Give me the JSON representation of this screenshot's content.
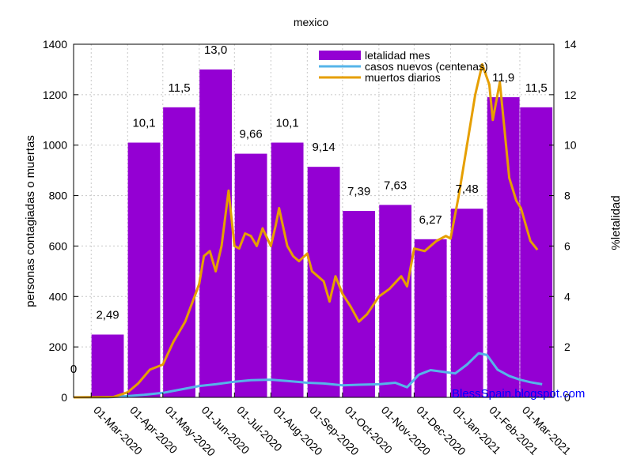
{
  "chart_data": {
    "type": "bar",
    "title": "mexico",
    "ylabel": "personas contagiadas o muertas",
    "y2label": "%letalidad",
    "ylim": [
      0,
      1400
    ],
    "y2lim": [
      0,
      14
    ],
    "yticks": [
      "0",
      "200",
      "400",
      "600",
      "800",
      "1000",
      "1200",
      "1400"
    ],
    "y2ticks": [
      "0",
      "2",
      "4",
      "6",
      "8",
      "10",
      "12",
      "14"
    ],
    "xrange": [
      "2020-02-15",
      "2021-03-30"
    ],
    "xticks": [
      {
        "date": "2020-03-01",
        "label": "01-Mar-2020"
      },
      {
        "date": "2020-04-01",
        "label": "01-Apr-2020"
      },
      {
        "date": "2020-05-01",
        "label": "01-May-2020"
      },
      {
        "date": "2020-06-01",
        "label": "01-Jun-2020"
      },
      {
        "date": "2020-07-01",
        "label": "01-Jul-2020"
      },
      {
        "date": "2020-08-01",
        "label": "01-Aug-2020"
      },
      {
        "date": "2020-09-01",
        "label": "01-Sep-2020"
      },
      {
        "date": "2020-10-01",
        "label": "01-Oct-2020"
      },
      {
        "date": "2020-11-01",
        "label": "01-Nov-2020"
      },
      {
        "date": "2020-12-01",
        "label": "01-Dec-2020"
      },
      {
        "date": "2021-01-01",
        "label": "01-Jan-2021"
      },
      {
        "date": "2021-02-01",
        "label": "01-Feb-2021"
      },
      {
        "date": "2021-03-01",
        "label": "01-Mar-2021"
      }
    ],
    "grid": true,
    "legend_position": "top-right",
    "series": [
      {
        "name": "letalidad mes",
        "axis": "y2",
        "color": "#9400d3",
        "kind": "bar",
        "bars": [
          {
            "date": "2020-02-15",
            "value": 0,
            "label": "0"
          },
          {
            "date": "2020-03-15",
            "value": 2.49,
            "label": "2,49"
          },
          {
            "date": "2020-04-15",
            "value": 10.1,
            "label": "10,1"
          },
          {
            "date": "2020-05-15",
            "value": 11.5,
            "label": "11,5"
          },
          {
            "date": "2020-06-15",
            "value": 13.0,
            "label": "13,0"
          },
          {
            "date": "2020-07-15",
            "value": 9.66,
            "label": "9,66"
          },
          {
            "date": "2020-08-15",
            "value": 10.1,
            "label": "10,1"
          },
          {
            "date": "2020-09-15",
            "value": 9.14,
            "label": "9,14"
          },
          {
            "date": "2020-10-15",
            "value": 7.39,
            "label": "7,39"
          },
          {
            "date": "2020-11-15",
            "value": 7.63,
            "label": "7,63"
          },
          {
            "date": "2020-12-15",
            "value": 6.27,
            "label": "6,27"
          },
          {
            "date": "2021-01-15",
            "value": 7.48,
            "label": "7,48"
          },
          {
            "date": "2021-02-15",
            "value": 11.9,
            "label": "11,9"
          },
          {
            "date": "2021-03-15",
            "value": 11.5,
            "label": "11,5"
          }
        ]
      },
      {
        "name": "casos nuevos (centenas)",
        "axis": "y",
        "color": "#56b4e9",
        "kind": "line",
        "points": [
          [
            "2020-02-15",
            0
          ],
          [
            "2020-03-15",
            0
          ],
          [
            "2020-04-01",
            5
          ],
          [
            "2020-04-15",
            10
          ],
          [
            "2020-05-01",
            18
          ],
          [
            "2020-05-15",
            30
          ],
          [
            "2020-06-01",
            45
          ],
          [
            "2020-06-15",
            52
          ],
          [
            "2020-07-01",
            62
          ],
          [
            "2020-07-15",
            68
          ],
          [
            "2020-08-01",
            70
          ],
          [
            "2020-08-15",
            65
          ],
          [
            "2020-09-01",
            58
          ],
          [
            "2020-09-15",
            55
          ],
          [
            "2020-10-01",
            48
          ],
          [
            "2020-10-15",
            50
          ],
          [
            "2020-11-01",
            52
          ],
          [
            "2020-11-15",
            58
          ],
          [
            "2020-11-25",
            40
          ],
          [
            "2020-12-05",
            90
          ],
          [
            "2020-12-15",
            108
          ],
          [
            "2020-12-28",
            100
          ],
          [
            "2021-01-05",
            95
          ],
          [
            "2021-01-15",
            130
          ],
          [
            "2021-01-25",
            175
          ],
          [
            "2021-02-01",
            168
          ],
          [
            "2021-02-10",
            110
          ],
          [
            "2021-02-20",
            85
          ],
          [
            "2021-03-01",
            70
          ],
          [
            "2021-03-10",
            60
          ],
          [
            "2021-03-20",
            52
          ]
        ]
      },
      {
        "name": "muertos diarios",
        "axis": "y",
        "color": "#e69f00",
        "kind": "line",
        "points": [
          [
            "2020-02-15",
            0
          ],
          [
            "2020-03-20",
            2
          ],
          [
            "2020-04-01",
            20
          ],
          [
            "2020-04-10",
            55
          ],
          [
            "2020-04-20",
            110
          ],
          [
            "2020-05-01",
            130
          ],
          [
            "2020-05-10",
            220
          ],
          [
            "2020-05-20",
            300
          ],
          [
            "2020-05-28",
            400
          ],
          [
            "2020-06-01",
            450
          ],
          [
            "2020-06-05",
            560
          ],
          [
            "2020-06-10",
            580
          ],
          [
            "2020-06-15",
            500
          ],
          [
            "2020-06-20",
            600
          ],
          [
            "2020-06-26",
            820
          ],
          [
            "2020-07-01",
            600
          ],
          [
            "2020-07-05",
            590
          ],
          [
            "2020-07-10",
            650
          ],
          [
            "2020-07-15",
            640
          ],
          [
            "2020-07-20",
            600
          ],
          [
            "2020-07-25",
            670
          ],
          [
            "2020-08-01",
            600
          ],
          [
            "2020-08-05",
            680
          ],
          [
            "2020-08-08",
            750
          ],
          [
            "2020-08-15",
            600
          ],
          [
            "2020-08-20",
            560
          ],
          [
            "2020-08-25",
            540
          ],
          [
            "2020-09-01",
            570
          ],
          [
            "2020-09-05",
            500
          ],
          [
            "2020-09-10",
            480
          ],
          [
            "2020-09-15",
            460
          ],
          [
            "2020-09-20",
            380
          ],
          [
            "2020-09-25",
            480
          ],
          [
            "2020-10-01",
            410
          ],
          [
            "2020-10-08",
            360
          ],
          [
            "2020-10-15",
            300
          ],
          [
            "2020-10-22",
            330
          ],
          [
            "2020-11-01",
            400
          ],
          [
            "2020-11-10",
            430
          ],
          [
            "2020-11-20",
            480
          ],
          [
            "2020-11-25",
            440
          ],
          [
            "2020-12-01",
            590
          ],
          [
            "2020-12-10",
            580
          ],
          [
            "2020-12-20",
            620
          ],
          [
            "2020-12-28",
            640
          ],
          [
            "2021-01-01",
            630
          ],
          [
            "2021-01-08",
            800
          ],
          [
            "2021-01-15",
            1000
          ],
          [
            "2021-01-22",
            1200
          ],
          [
            "2021-01-28",
            1320
          ],
          [
            "2021-02-03",
            1240
          ],
          [
            "2021-02-06",
            1100
          ],
          [
            "2021-02-12",
            1250
          ],
          [
            "2021-02-20",
            870
          ],
          [
            "2021-02-26",
            780
          ],
          [
            "2021-03-02",
            750
          ],
          [
            "2021-03-10",
            620
          ],
          [
            "2021-03-16",
            585
          ]
        ]
      }
    ]
  },
  "watermark": "BlessSpain.blogspot.com"
}
